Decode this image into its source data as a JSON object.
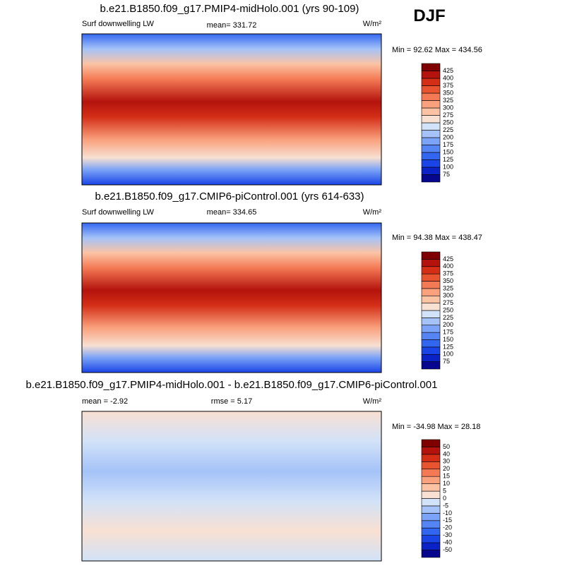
{
  "figure_label": "DJF",
  "panels": [
    {
      "title": "b.e21.B1850.f09_g17.PMIP4-midHolo.001 (yrs 90-109)",
      "left": "Surf downwelling LW",
      "center": "mean= 331.72",
      "right": "W/m²",
      "range": "Min =  92.62 Max = 434.56",
      "colorbar": {
        "labels": [
          75,
          100,
          125,
          150,
          175,
          200,
          225,
          250,
          275,
          300,
          325,
          350,
          375,
          400,
          425
        ],
        "colors": [
          "#06068f",
          "#0b22c6",
          "#1a44e6",
          "#3366f0",
          "#5585f5",
          "#7ba3f7",
          "#a5c3f8",
          "#d2e2f8",
          "#f8e0d2",
          "#fbc3a4",
          "#f9a07c",
          "#f47a55",
          "#e95430",
          "#d42e17",
          "#b3130c",
          "#7f0000"
        ]
      }
    },
    {
      "title": "b.e21.B1850.f09_g17.CMIP6-piControl.001 (yrs 614-633)",
      "left": "Surf downwelling LW",
      "center": "mean= 334.65",
      "right": "W/m²",
      "range": "Min =  94.38 Max = 438.47",
      "colorbar": {
        "labels": [
          75,
          100,
          125,
          150,
          175,
          200,
          225,
          250,
          275,
          300,
          325,
          350,
          375,
          400,
          425
        ],
        "colors": [
          "#06068f",
          "#0b22c6",
          "#1a44e6",
          "#3366f0",
          "#5585f5",
          "#7ba3f7",
          "#a5c3f8",
          "#d2e2f8",
          "#f8e0d2",
          "#fbc3a4",
          "#f9a07c",
          "#f47a55",
          "#e95430",
          "#d42e17",
          "#b3130c",
          "#7f0000"
        ]
      }
    },
    {
      "title": "b.e21.B1850.f09_g17.PMIP4-midHolo.001 - b.e21.B1850.f09_g17.CMIP6-piControl.001",
      "left": "mean =  -2.92",
      "center": "rmse =  5.17",
      "right": "W/m²",
      "range": "Min = -34.98 Max =  28.18",
      "colorbar": {
        "labels": [
          -50,
          -40,
          -30,
          -20,
          -15,
          -10,
          -5,
          0,
          5,
          10,
          15,
          20,
          30,
          40,
          50
        ],
        "colors": [
          "#06068f",
          "#0b22c6",
          "#1a44e6",
          "#3366f0",
          "#5585f5",
          "#7ba3f7",
          "#a5c3f8",
          "#d2e2f8",
          "#f8e0d2",
          "#fbc3a4",
          "#f9a07c",
          "#f47a55",
          "#e95430",
          "#d42e17",
          "#b3130c",
          "#7f0000"
        ]
      }
    }
  ]
}
